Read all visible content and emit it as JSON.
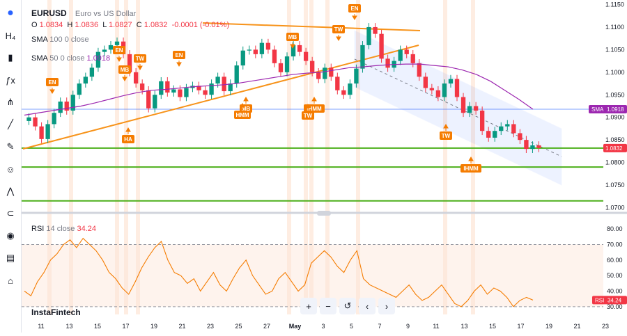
{
  "symbol": {
    "ticker": "EURUSD",
    "name": "Euro vs US Dollar"
  },
  "ohlc": {
    "o_label": "O",
    "o": "1.0834",
    "h_label": "H",
    "h": "1.0836",
    "l_label": "L",
    "l": "1.0827",
    "c_label": "C",
    "c": "1.0832",
    "change": "-0.0001 (-0.01%)"
  },
  "indicators": {
    "sma100": {
      "label": "SMA",
      "params": "100 0 close"
    },
    "sma50": {
      "label": "SMA",
      "params": "50 0 close",
      "value": "1.0918"
    },
    "rsi": {
      "label": "RSI",
      "params": "14 close",
      "value": "34.24"
    }
  },
  "price_tags": {
    "sma_label": "SMA",
    "sma_value": "1.0918",
    "last": "1.0832",
    "rsi_label": "RSI",
    "rsi_value": "34.24"
  },
  "brand": "InstaFintech",
  "sidebar_icons": [
    "logo-icon",
    "h4-icon",
    "candles-icon",
    "fx-icon",
    "nodes-icon",
    "lines-icon",
    "brush-icon",
    "smile-icon",
    "pattern-icon",
    "magnet-icon",
    "eye-icon",
    "alerts-icon",
    "lock-icon"
  ],
  "toolbar": {
    "plus": "+",
    "minus": "−",
    "reset": "↺",
    "left": "‹",
    "right": "›"
  },
  "chart_data": [
    {
      "type": "line",
      "title": "EURUSD",
      "price_axis": [
        "1.1150",
        "1.1100",
        "1.1050",
        "1.1000",
        "1.0950",
        "1.0900",
        "1.0850",
        "1.0800",
        "1.0750",
        "1.0700"
      ],
      "ylim": [
        1.069,
        1.116
      ],
      "time_axis": [
        "11",
        "13",
        "15",
        "17",
        "19",
        "21",
        "23",
        "25",
        "27",
        "May",
        "3",
        "5",
        "7",
        "9",
        "11",
        "13",
        "15",
        "17",
        "19",
        "21",
        "23"
      ],
      "series": [
        {
          "name": "close",
          "values": [
            1.09,
            1.088,
            1.0852,
            1.0885,
            1.091,
            1.0935,
            1.0915,
            1.095,
            1.0975,
            1.099,
            1.101,
            1.1045,
            1.105,
            1.106,
            1.1068,
            1.104,
            1.1,
            1.0975,
            1.096,
            1.092,
            1.095,
            1.098,
            1.0955,
            1.0962,
            1.0945,
            1.0965,
            1.097,
            1.096,
            1.095,
            1.0975,
            1.099,
            1.0958,
            1.0975,
            1.1015,
            1.1048,
            1.105,
            1.104,
            1.1065,
            1.105,
            1.102,
            1.1,
            1.1035,
            1.106,
            1.1045,
            1.1025,
            1.1,
            1.0985,
            1.101,
            1.099,
            1.096,
            1.095,
            1.0975,
            1.1008,
            1.106,
            1.11,
            1.1085,
            1.103,
            1.101,
            1.1025,
            1.105,
            1.104,
            1.102,
            1.099,
            1.0965,
            1.096,
            1.0945,
            1.0975,
            1.0985,
            1.0945,
            1.091,
            1.0925,
            1.0915,
            1.087,
            1.0855,
            1.087,
            1.088,
            1.0885,
            1.0865,
            1.085,
            1.083,
            1.0838,
            1.0832
          ]
        },
        {
          "name": "SMA 50",
          "values": [
            1.0905,
            1.091,
            1.0915,
            1.092,
            1.0925,
            1.0932,
            1.094,
            1.0948,
            1.0955,
            1.096,
            1.0962,
            1.0965,
            1.0968,
            1.097,
            1.0972,
            1.0975,
            1.098,
            1.0985,
            1.099,
            1.0995,
            1.0998,
            1.1,
            1.1005,
            1.101,
            1.1012,
            1.1015,
            1.1017,
            1.1018,
            1.1018,
            1.1015,
            1.1012,
            1.1005,
            1.0995,
            1.098,
            1.096,
            1.094,
            1.0918
          ]
        }
      ],
      "annotations": [
        {
          "text": "EN",
          "dir": "down"
        },
        {
          "text": "EN",
          "dir": "down"
        },
        {
          "text": "MB",
          "dir": "down"
        },
        {
          "text": "TW",
          "dir": "down"
        },
        {
          "text": "EN",
          "dir": "down"
        },
        {
          "text": "HA",
          "dir": "up"
        },
        {
          "text": "MB",
          "dir": "down"
        },
        {
          "text": "MB",
          "dir": "up"
        },
        {
          "text": "HMM",
          "dir": "up"
        },
        {
          "text": "IHMM",
          "dir": "up"
        },
        {
          "text": "TW",
          "dir": "up"
        },
        {
          "text": "TW",
          "dir": "down"
        },
        {
          "text": "EN",
          "dir": "down"
        },
        {
          "text": "TW",
          "dir": "up"
        },
        {
          "text": "IHMM",
          "dir": "up"
        }
      ],
      "horizontal_levels": [
        1.0918,
        1.0832,
        1.079,
        1.0715
      ],
      "colors": {
        "up": "#089981",
        "down": "#f23645",
        "sma": "#9c27b0",
        "trend": "#f7931a",
        "level": "#4caf1a",
        "channel": "#2962ff"
      }
    },
    {
      "type": "line",
      "title": "RSI 14 close",
      "rsi_axis": [
        "80.00",
        "70.00",
        "60.00",
        "50.00",
        "40.00",
        "30.00"
      ],
      "ylim": [
        25,
        85
      ],
      "series": [
        {
          "name": "RSI",
          "values": [
            40,
            37,
            46,
            52,
            60,
            64,
            70,
            73,
            68,
            74,
            70,
            66,
            60,
            52,
            48,
            42,
            38,
            46,
            55,
            62,
            68,
            72,
            60,
            52,
            50,
            45,
            48,
            40,
            46,
            52,
            44,
            40,
            48,
            55,
            60,
            50,
            44,
            38,
            40,
            48,
            52,
            46,
            40,
            44,
            58,
            62,
            66,
            62,
            56,
            52,
            60,
            66,
            48,
            44,
            42,
            40,
            38,
            36,
            40,
            44,
            38,
            34,
            36,
            40,
            44,
            38,
            32,
            30,
            34,
            40,
            44,
            38,
            42,
            40,
            36,
            30,
            34,
            36,
            34.24
          ]
        }
      ],
      "levels": [
        70,
        30
      ]
    }
  ]
}
